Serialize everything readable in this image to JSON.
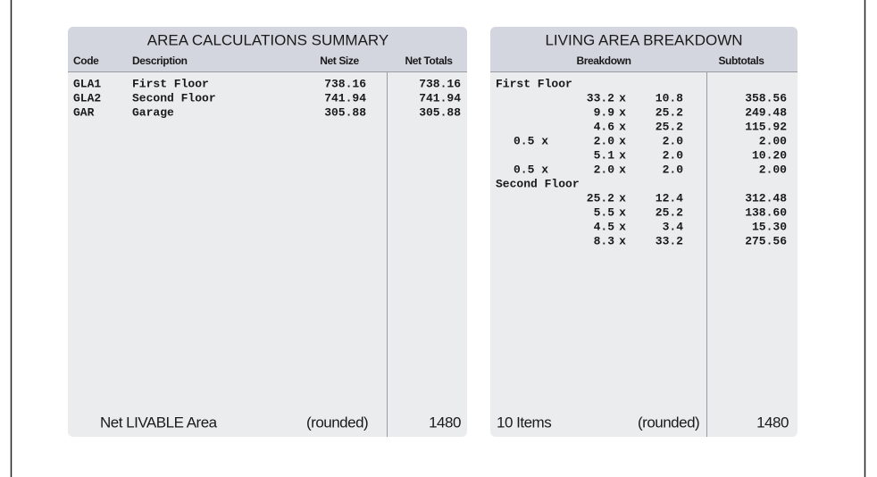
{
  "summary": {
    "title": "AREA CALCULATIONS SUMMARY",
    "headers": [
      "Code",
      "Description",
      "Net Size",
      "Net Totals"
    ],
    "rows": [
      [
        "GLA1",
        "First Floor",
        "738.16",
        "738.16"
      ],
      [
        "GLA2",
        "Second Floor",
        "741.94",
        "741.94"
      ],
      [
        "GAR",
        "Garage",
        "305.88",
        "305.88"
      ]
    ],
    "footer": {
      "label": "Net LIVABLE Area",
      "note": "(rounded)",
      "total": "1480"
    }
  },
  "breakdown": {
    "title": "LIVING AREA BREAKDOWN",
    "headers": [
      "Breakdown",
      "Subtotals"
    ],
    "rows": [
      {
        "section": "First Floor"
      },
      {
        "a": "33.2",
        "op": "x",
        "b": "10.8",
        "subtotal": "358.56"
      },
      {
        "a": "9.9",
        "op": "x",
        "b": "25.2",
        "subtotal": "249.48"
      },
      {
        "a": "4.6",
        "op": "x",
        "b": "25.2",
        "subtotal": "115.92"
      },
      {
        "factor": "0.5 x",
        "a": "2.0",
        "op": "x",
        "b": "2.0",
        "subtotal": "2.00"
      },
      {
        "a": "5.1",
        "op": "x",
        "b": "2.0",
        "subtotal": "10.20"
      },
      {
        "factor": "0.5 x",
        "a": "2.0",
        "op": "x",
        "b": "2.0",
        "subtotal": "2.00"
      },
      {
        "section": "Second Floor"
      },
      {
        "a": "25.2",
        "op": "x",
        "b": "12.4",
        "subtotal": "312.48"
      },
      {
        "a": "5.5",
        "op": "x",
        "b": "25.2",
        "subtotal": "138.60"
      },
      {
        "a": "4.5",
        "op": "x",
        "b": "3.4",
        "subtotal": "15.30"
      },
      {
        "a": "8.3",
        "op": "x",
        "b": "33.2",
        "subtotal": "275.56"
      }
    ],
    "footer": {
      "count": "10 Items",
      "note": "(rounded)",
      "total": "1480"
    }
  }
}
